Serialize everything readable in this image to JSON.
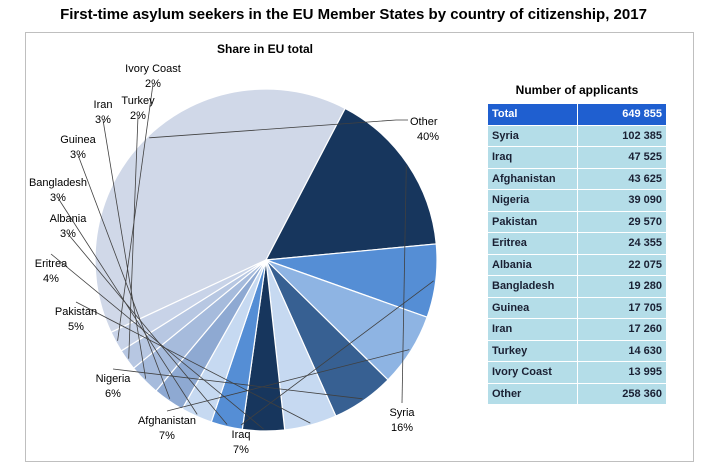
{
  "title": "First-time asylum seekers in the EU Member States by country of citizenship, 2017",
  "chart_data": [
    {
      "type": "pie",
      "title": "Share in EU total",
      "unit": "%",
      "slices": [
        {
          "label": "Other",
          "value": 40,
          "value_label": "40%",
          "color": "#d0d8e8"
        },
        {
          "label": "Syria",
          "value": 16,
          "value_label": "16%",
          "color": "#17365d"
        },
        {
          "label": "Iraq",
          "value": 7,
          "value_label": "7%",
          "color": "#558ed5"
        },
        {
          "label": "Afghanistan",
          "value": 7,
          "value_label": "7%",
          "color": "#8eb4e3"
        },
        {
          "label": "Nigeria",
          "value": 6,
          "value_label": "6%",
          "color": "#376092"
        },
        {
          "label": "Pakistan",
          "value": 5,
          "value_label": "5%",
          "color": "#c6d9f1"
        },
        {
          "label": "Eritrea",
          "value": 4,
          "value_label": "4%",
          "color": "#17365d"
        },
        {
          "label": "Albania",
          "value": 3,
          "value_label": "3%",
          "color": "#558ed5"
        },
        {
          "label": "Bangladesh",
          "value": 3,
          "value_label": "3%",
          "color": "#c6d9f1"
        },
        {
          "label": "Guinea",
          "value": 3,
          "value_label": "3%",
          "color": "#8ea9d2"
        },
        {
          "label": "Iran",
          "value": 3,
          "value_label": "3%",
          "color": "#a6bbdc"
        },
        {
          "label": "Turkey",
          "value": 2,
          "value_label": "2%",
          "color": "#b7c7e2"
        },
        {
          "label": "Ivory Coast",
          "value": 2,
          "value_label": "2%",
          "color": "#c8d3e8"
        }
      ]
    },
    {
      "type": "table",
      "title": "Number of applicants",
      "rows": [
        {
          "country": "Total",
          "value": "649 855"
        },
        {
          "country": "Syria",
          "value": "102 385"
        },
        {
          "country": "Iraq",
          "value": "47 525"
        },
        {
          "country": "Afghanistan",
          "value": "43 625"
        },
        {
          "country": "Nigeria",
          "value": "39 090"
        },
        {
          "country": "Pakistan",
          "value": "29 570"
        },
        {
          "country": "Eritrea",
          "value": "24 355"
        },
        {
          "country": "Albania",
          "value": "22 075"
        },
        {
          "country": "Bangladesh",
          "value": "19 280"
        },
        {
          "country": "Guinea",
          "value": "17 705"
        },
        {
          "country": "Iran",
          "value": "17 260"
        },
        {
          "country": "Turkey",
          "value": "14 630"
        },
        {
          "country": "Ivory Coast",
          "value": "13 995"
        },
        {
          "country": "Other",
          "value": "258 360"
        }
      ]
    }
  ]
}
